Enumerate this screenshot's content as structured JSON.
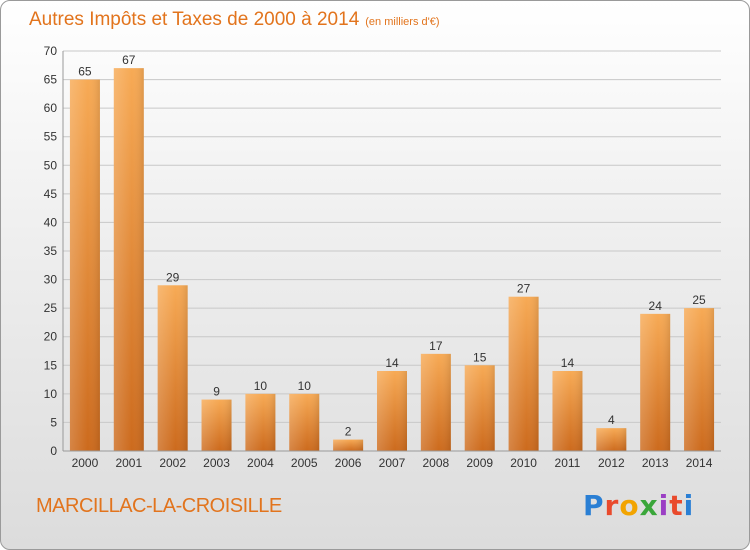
{
  "header": {
    "title": "Autres Impôts et Taxes de 2000 à 2014",
    "unit": "(en milliers d'€)"
  },
  "footer": {
    "commune": "MARCILLAC-LA-CROISILLE",
    "brand": "Proxiti"
  },
  "colors": {
    "bar_light": "#f6a54e",
    "bar_dark": "#c9641a",
    "text_accent": "#e2741d",
    "grid": "#c8c8c8"
  },
  "chart_data": {
    "type": "bar",
    "categories": [
      "2000",
      "2001",
      "2002",
      "2003",
      "2004",
      "2005",
      "2006",
      "2007",
      "2008",
      "2009",
      "2010",
      "2011",
      "2012",
      "2013",
      "2014"
    ],
    "values": [
      65,
      67,
      29,
      9,
      10,
      10,
      2,
      14,
      17,
      15,
      27,
      14,
      4,
      24,
      25
    ],
    "ylim": [
      0,
      70
    ],
    "yticks": [
      0,
      5,
      10,
      15,
      20,
      25,
      30,
      35,
      40,
      45,
      50,
      55,
      60,
      65,
      70
    ],
    "grid": true,
    "title": "Autres Impôts et Taxes de 2000 à 2014",
    "xlabel": "",
    "ylabel": ""
  }
}
